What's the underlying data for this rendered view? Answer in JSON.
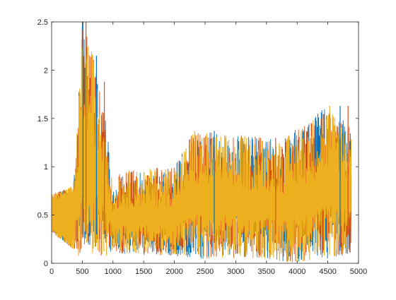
{
  "chart_data": {
    "type": "line",
    "title": "",
    "xlabel": "",
    "ylabel": "",
    "xlim": [
      0,
      5000
    ],
    "ylim": [
      0,
      2.5
    ],
    "grid": false,
    "legend": "none",
    "x_ticks": [
      0,
      500,
      1000,
      1500,
      2000,
      2500,
      3000,
      3500,
      4000,
      4500,
      5000
    ],
    "y_ticks": [
      0,
      0.5,
      1,
      1.5,
      2,
      2.5
    ],
    "x_tick_labels": [
      "0",
      "500",
      "1000",
      "1500",
      "2000",
      "2500",
      "3000",
      "3500",
      "4000",
      "4500",
      "5000"
    ],
    "y_tick_labels": [
      "0",
      "0.5",
      "1",
      "1.5",
      "2",
      "2.5"
    ],
    "series_colors": [
      "#0072BD",
      "#D95319",
      "#EDB120"
    ],
    "x_extent": [
      0,
      4880
    ],
    "band_profile": [
      {
        "x": 0,
        "low": 0.32,
        "high": 0.71
      },
      {
        "x": 350,
        "low": 0.15,
        "high": 0.8
      },
      {
        "x": 400,
        "low": 0.1,
        "high": 1.2
      },
      {
        "x": 500,
        "low": 0.05,
        "high": 2.5
      },
      {
        "x": 680,
        "low": 0.05,
        "high": 2.15
      },
      {
        "x": 900,
        "low": 0.08,
        "high": 1.45
      },
      {
        "x": 1000,
        "low": 0.15,
        "high": 0.72
      },
      {
        "x": 1100,
        "low": 0.1,
        "high": 0.95
      },
      {
        "x": 2000,
        "low": 0.08,
        "high": 1.0
      },
      {
        "x": 2300,
        "low": 0.05,
        "high": 1.37
      },
      {
        "x": 3500,
        "low": 0.05,
        "high": 1.3
      },
      {
        "x": 3800,
        "low": 0.0,
        "high": 1.3
      },
      {
        "x": 4500,
        "low": 0.05,
        "high": 1.63
      },
      {
        "x": 4880,
        "low": 0.1,
        "high": 1.4
      }
    ],
    "peaks": [
      {
        "x": 510,
        "y": 2.5
      },
      {
        "x": 560,
        "y": 2.5
      },
      {
        "x": 670,
        "y": 2.15
      },
      {
        "x": 730,
        "y": 2.15
      },
      {
        "x": 860,
        "y": 1.88
      },
      {
        "x": 2330,
        "y": 1.37
      },
      {
        "x": 2650,
        "y": 1.37
      },
      {
        "x": 3650,
        "y": 1.3
      },
      {
        "x": 4530,
        "y": 1.63
      },
      {
        "x": 4700,
        "y": 1.63
      },
      {
        "x": 4830,
        "y": 1.63
      }
    ]
  }
}
